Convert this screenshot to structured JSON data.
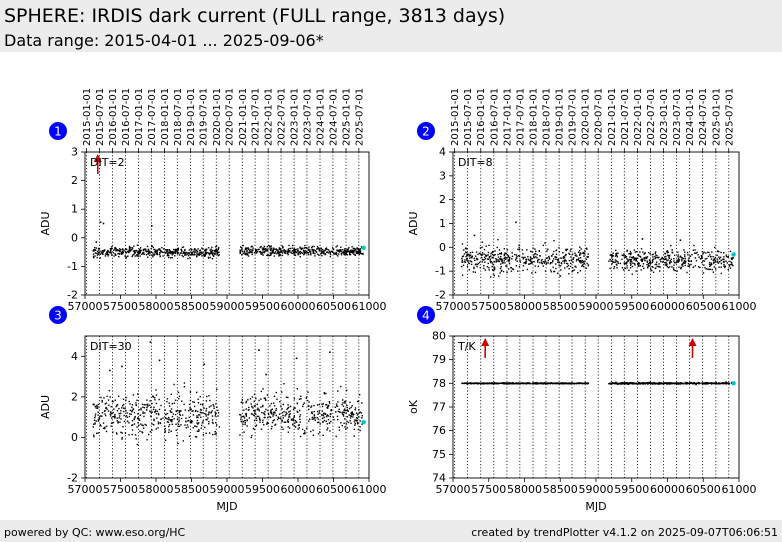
{
  "header": {
    "title": "SPHERE: IRDIS dark current (FULL range, 3813 days)",
    "subtitle": "Data range: 2015-04-01 ... 2025-09-06*"
  },
  "footer": {
    "left": "powered by QC: www.eso.org/HC",
    "right": "created by trendPlotter v4.1.2 on 2025-09-07T06:06:51"
  },
  "colors": {
    "header_bg": "#ececec",
    "marker": "#0000ff",
    "points": "#000000",
    "latest": "#00c8c8",
    "outlier": "#cc0000"
  },
  "chart_data": [
    {
      "type": "scatter",
      "panel": "1",
      "label": "DIT=2",
      "ylabel": "ADU",
      "xlabel": "",
      "xlim": [
        57000,
        61000
      ],
      "ylim": [
        -2,
        3
      ],
      "yticks": [
        -2,
        -1,
        0,
        1,
        2,
        3
      ],
      "xticks": [
        57000,
        57500,
        58000,
        58500,
        59000,
        59500,
        60000,
        60500,
        61000
      ],
      "date_ticks": [
        "2015-01-01",
        "2015-07-01",
        "2016-01-01",
        "2016-07-01",
        "2017-01-01",
        "2017-07-01",
        "2018-01-01",
        "2018-07-01",
        "2019-01-01",
        "2019-07-01",
        "2020-01-01",
        "2020-07-01",
        "2021-01-01",
        "2021-07-01",
        "2022-01-01",
        "2022-07-01",
        "2023-01-01",
        "2023-07-01",
        "2024-01-01",
        "2024-07-01",
        "2025-01-01",
        "2025-07-01"
      ],
      "date_tick_mjd": [
        57023,
        57204,
        57388,
        57570,
        57754,
        57935,
        58119,
        58300,
        58484,
        58665,
        58849,
        59031,
        59215,
        59396,
        59580,
        59761,
        59945,
        60126,
        60310,
        60492,
        60676,
        60857
      ],
      "segments": [
        {
          "x_range": [
            57115,
            58895
          ],
          "y_center": -0.5,
          "spread": 0.09
        },
        {
          "x_range": [
            59180,
            60920
          ],
          "y_center": -0.47,
          "spread": 0.08
        }
      ],
      "scatter_outliers": [
        {
          "x": 57220,
          "y": 0.55
        },
        {
          "x": 57260,
          "y": 0.5
        },
        {
          "x": 57940,
          "y": 0.42
        },
        {
          "x": 57160,
          "y": -0.15
        }
      ],
      "offscale_markers": [
        {
          "x": 57180,
          "direction": "up"
        }
      ],
      "latest": {
        "x": 60925,
        "y": -0.35
      }
    },
    {
      "type": "scatter",
      "panel": "2",
      "label": "DIT=8",
      "ylabel": "ADU",
      "xlabel": "",
      "xlim": [
        57000,
        61000
      ],
      "ylim": [
        -2,
        4
      ],
      "yticks": [
        -2,
        -1,
        0,
        1,
        2,
        3,
        4
      ],
      "xticks": [
        57000,
        57500,
        58000,
        58500,
        59000,
        59500,
        60000,
        60500,
        61000
      ],
      "date_ticks": [
        "2015-01-01",
        "2015-07-01",
        "2016-01-01",
        "2016-07-01",
        "2017-01-01",
        "2017-07-01",
        "2018-01-01",
        "2018-07-01",
        "2019-01-01",
        "2019-07-01",
        "2020-01-01",
        "2020-07-01",
        "2021-01-01",
        "2021-07-01",
        "2022-01-01",
        "2022-07-01",
        "2023-01-01",
        "2023-07-01",
        "2024-01-01",
        "2024-07-01",
        "2025-01-01",
        "2025-07-01"
      ],
      "date_tick_mjd": [
        57023,
        57204,
        57388,
        57570,
        57754,
        57935,
        58119,
        58300,
        58484,
        58665,
        58849,
        59031,
        59215,
        59396,
        59580,
        59761,
        59945,
        60126,
        60310,
        60492,
        60676,
        60857
      ],
      "segments": [
        {
          "x_range": [
            57115,
            58895
          ],
          "y_center": -0.5,
          "spread": 0.28
        },
        {
          "x_range": [
            59180,
            60920
          ],
          "y_center": -0.55,
          "spread": 0.22
        }
      ],
      "scatter_outliers": [
        {
          "x": 57880,
          "y": 1.05
        },
        {
          "x": 57300,
          "y": 0.5
        },
        {
          "x": 59650,
          "y": 0.35
        },
        {
          "x": 60180,
          "y": 0.3
        },
        {
          "x": 58500,
          "y": -1.2
        }
      ],
      "offscale_markers": [],
      "latest": {
        "x": 60925,
        "y": -0.3
      }
    },
    {
      "type": "scatter",
      "panel": "3",
      "label": "DIT=30",
      "ylabel": "ADU",
      "xlabel": "MJD",
      "xlim": [
        57000,
        61000
      ],
      "ylim": [
        -2,
        5
      ],
      "yticks": [
        -2,
        0,
        2,
        4
      ],
      "xticks": [
        57000,
        57500,
        58000,
        58500,
        59000,
        59500,
        60000,
        60500,
        61000
      ],
      "date_tick_mjd": [
        57023,
        57204,
        57388,
        57570,
        57754,
        57935,
        58119,
        58300,
        58484,
        58665,
        58849,
        59031,
        59215,
        59396,
        59580,
        59761,
        59945,
        60126,
        60310,
        60492,
        60676,
        60857
      ],
      "segments": [
        {
          "x_range": [
            57115,
            58895
          ],
          "y_center": 1.1,
          "spread": 0.55
        },
        {
          "x_range": [
            59180,
            60920
          ],
          "y_center": 1.15,
          "spread": 0.5
        }
      ],
      "scatter_outliers": [
        {
          "x": 57920,
          "y": 4.7
        },
        {
          "x": 59450,
          "y": 4.3
        },
        {
          "x": 60450,
          "y": 4.2
        },
        {
          "x": 58050,
          "y": 3.8
        },
        {
          "x": 59980,
          "y": 3.9
        },
        {
          "x": 58680,
          "y": 3.6
        },
        {
          "x": 57350,
          "y": 3.3
        },
        {
          "x": 57520,
          "y": 3.5
        },
        {
          "x": 59550,
          "y": 3.1
        }
      ],
      "offscale_markers": [],
      "latest": {
        "x": 60925,
        "y": 0.75
      }
    },
    {
      "type": "scatter",
      "panel": "4",
      "label": "T/K",
      "ylabel": "oK",
      "xlabel": "MJD",
      "xlim": [
        57000,
        61000
      ],
      "ylim": [
        74,
        80
      ],
      "yticks": [
        74,
        75,
        76,
        77,
        78,
        79,
        80
      ],
      "xticks": [
        57000,
        57500,
        58000,
        58500,
        59000,
        59500,
        60000,
        60500,
        61000
      ],
      "date_tick_mjd": [
        57023,
        57204,
        57388,
        57570,
        57754,
        57935,
        58119,
        58300,
        58484,
        58665,
        58849,
        59031,
        59215,
        59396,
        59580,
        59761,
        59945,
        60126,
        60310,
        60492,
        60676,
        60857
      ],
      "segments": [
        {
          "x_range": [
            57115,
            58895
          ],
          "y_center": 78.0,
          "spread": 0.01
        },
        {
          "x_range": [
            59180,
            60920
          ],
          "y_center": 78.0,
          "spread": 0.015
        }
      ],
      "scatter_outliers": [
        {
          "x": 60400,
          "y": 77.95
        },
        {
          "x": 60820,
          "y": 78.05
        }
      ],
      "offscale_markers": [
        {
          "x": 57450,
          "direction": "up"
        },
        {
          "x": 60350,
          "direction": "up"
        }
      ],
      "latest": {
        "x": 60925,
        "y": 78.0
      }
    }
  ]
}
